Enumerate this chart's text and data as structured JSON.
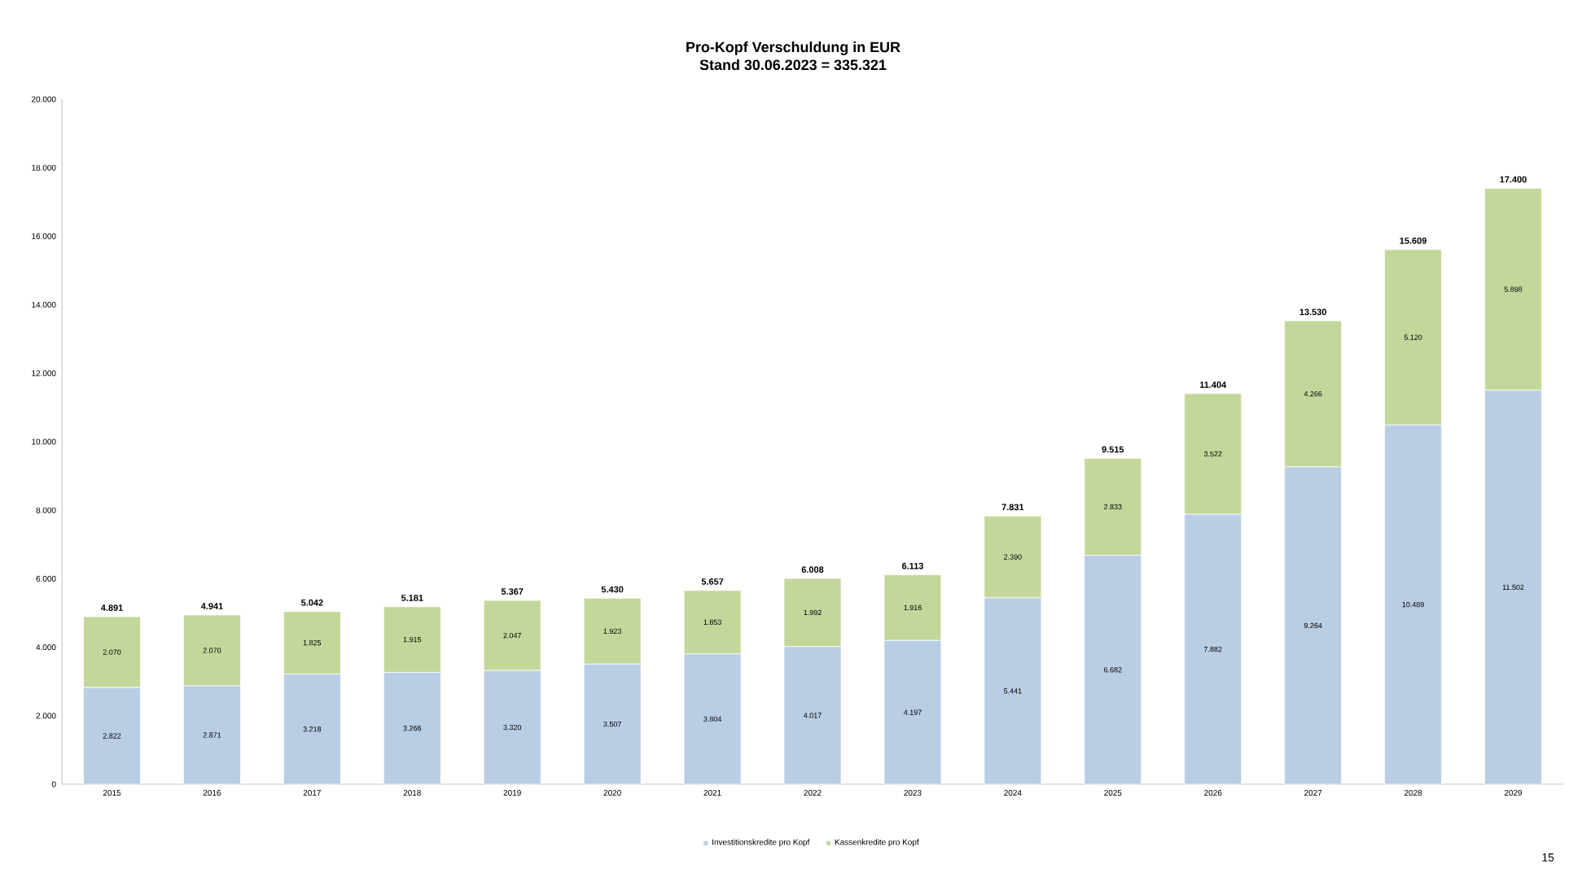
{
  "chart_data": {
    "type": "bar",
    "title": "Pro-Kopf Verschuldung in EUR",
    "subtitle": "Stand 30.06.2023 = 335.321",
    "categories": [
      "2015",
      "2016",
      "2017",
      "2018",
      "2019",
      "2020",
      "2021",
      "2022",
      "2023",
      "2024",
      "2025",
      "2026",
      "2027",
      "2028",
      "2029"
    ],
    "stacked": true,
    "series": [
      {
        "name": "Investitionskredite pro Kopf",
        "color": "#b9cde5",
        "values": [
          2822,
          2871,
          3218,
          3266,
          3320,
          3507,
          3804,
          4017,
          4197,
          5441,
          6682,
          7882,
          9264,
          10489,
          11502
        ],
        "value_labels": [
          "2.822",
          "2.871",
          "3.218",
          "3.266",
          "3.320",
          "3.507",
          "3.804",
          "4.017",
          "4.197",
          "5.441",
          "6.682",
          "7.882",
          "9.264",
          "10.489",
          "11.502"
        ]
      },
      {
        "name": "Kassenkredite pro Kopf",
        "color": "#c4d79b",
        "values": [
          2070,
          2070,
          1825,
          1915,
          2047,
          1923,
          1853,
          1992,
          1916,
          2390,
          2833,
          3522,
          4266,
          5120,
          5898
        ],
        "value_labels": [
          "2.070",
          "2.070",
          "1.825",
          "1.915",
          "2.047",
          "1.923",
          "1.853",
          "1.992",
          "1.916",
          "2.390",
          "2.833",
          "3.522",
          "4.266",
          "5.120",
          "5.898"
        ]
      }
    ],
    "totals": [
      "4.891",
      "4.941",
      "5.042",
      "5.181",
      "5.367",
      "5.430",
      "5.657",
      "6.008",
      "6.113",
      "7.831",
      "9.515",
      "11.404",
      "13.530",
      "15.609",
      "17.400"
    ],
    "ylim": [
      0,
      20000
    ],
    "yticks": [
      0,
      {
        "value": 2000,
        "label": "2.000"
      },
      {
        "value": 4000,
        "label": "4.000"
      },
      {
        "value": 6000,
        "label": "6.000"
      },
      {
        "value": 8000,
        "label": "8.000"
      },
      {
        "value": 10000,
        "label": "10.000"
      },
      {
        "value": 12000,
        "label": "12.000"
      },
      {
        "value": 14000,
        "label": "14.000"
      },
      {
        "value": 16000,
        "label": "16.000"
      },
      {
        "value": 18000,
        "label": "18.000"
      },
      {
        "value": 20000,
        "label": "20.000"
      }
    ],
    "legend": "bottom",
    "annotations": [
      "15"
    ]
  }
}
